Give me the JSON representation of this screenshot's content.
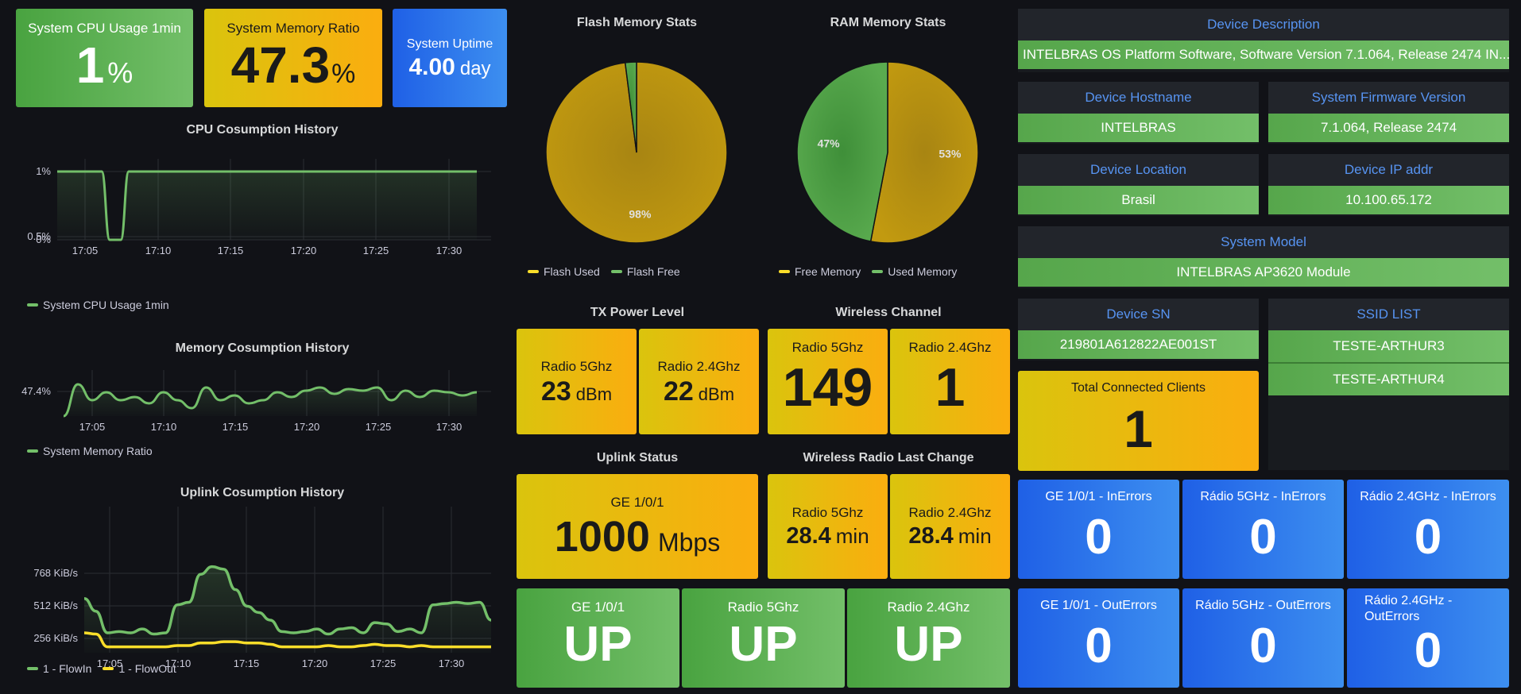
{
  "top_stats": {
    "cpu": {
      "title": "System CPU Usage 1min",
      "value": "1",
      "unit": "%"
    },
    "memory": {
      "title": "System Memory Ratio",
      "value": "47.3",
      "unit": "%"
    },
    "uptime": {
      "title": "System Uptime",
      "value": "4.00",
      "unit": "day"
    }
  },
  "cpu_history": {
    "title": "CPU Cosumption History",
    "legend": "System CPU Usage 1min",
    "y_ticks": [
      "1%",
      "0.5%",
      "0%"
    ],
    "x_ticks": [
      "17:05",
      "17:10",
      "17:15",
      "17:20",
      "17:25",
      "17:30"
    ],
    "color": "#73bf69",
    "chart_data": {
      "type": "line",
      "x": [
        "17:02",
        "17:03",
        "17:04",
        "17:05",
        "17:06",
        "17:07",
        "17:08",
        "17:10",
        "17:15",
        "17:20",
        "17:25",
        "17:30",
        "17:33"
      ],
      "series": [
        {
          "name": "System CPU Usage 1min",
          "values": [
            1,
            1,
            1,
            1,
            0,
            0,
            1,
            1,
            1,
            1,
            1,
            1,
            1
          ]
        }
      ],
      "ylim": [
        0,
        1
      ]
    }
  },
  "mem_history": {
    "title": "Memory Cosumption History",
    "legend": "System Memory Ratio",
    "y_ticks": [
      "47.4%"
    ],
    "x_ticks": [
      "17:05",
      "17:10",
      "17:15",
      "17:20",
      "17:25",
      "17:30"
    ],
    "color": "#73bf69",
    "chart_data": {
      "type": "line",
      "series": [
        {
          "name": "System Memory Ratio",
          "values": [
            47.2,
            47.4,
            47.3,
            47.35,
            47.3,
            47.32,
            47.28,
            47.35,
            47.3,
            47.25,
            47.38,
            47.3,
            47.33,
            47.28,
            47.3,
            47.35,
            47.32,
            47.36,
            47.38,
            47.34,
            47.37,
            47.36,
            47.38,
            47.3,
            47.36,
            47.32,
            47.36,
            47.35,
            47.33,
            47.35
          ]
        }
      ]
    }
  },
  "uplink_history": {
    "title": "Uplink Cosumption History",
    "y_ticks": [
      "768 KiB/s",
      "512 KiB/s",
      "256 KiB/s"
    ],
    "x_ticks": [
      "17:05",
      "17:10",
      "17:15",
      "17:20",
      "17:25",
      "17:30"
    ],
    "legend_in": "1 - FlowIn",
    "legend_out": "1 - FlowOut",
    "color_in": "#73bf69",
    "color_out": "#fade2a",
    "chart_data": {
      "type": "line",
      "series": [
        {
          "name": "1 - FlowIn",
          "values": [
            570,
            470,
            300,
            310,
            300,
            330,
            290,
            300,
            520,
            540,
            760,
            820,
            800,
            640,
            510,
            460,
            400,
            310,
            300,
            310,
            330,
            290,
            330,
            340,
            300,
            380,
            370,
            310,
            330,
            300,
            520,
            530,
            540,
            530,
            540,
            400
          ]
        },
        {
          "name": "1 - FlowOut",
          "values": [
            300,
            290,
            190,
            190,
            190,
            190,
            190,
            190,
            200,
            200,
            220,
            220,
            230,
            230,
            220,
            220,
            210,
            190,
            190,
            190,
            190,
            200,
            190,
            190,
            200,
            210,
            200,
            200,
            190,
            200,
            190,
            190,
            190,
            190,
            190,
            190
          ]
        }
      ]
    }
  },
  "flash_pie": {
    "title": "Flash Memory Stats",
    "legend": [
      "Flash Used",
      "Flash Free"
    ],
    "colors": [
      "#b88c0f",
      "#56a64b"
    ],
    "labels": [
      "98%"
    ],
    "chart_data": {
      "type": "pie",
      "categories": [
        "Flash Used",
        "Flash Free"
      ],
      "values": [
        98,
        2
      ]
    }
  },
  "ram_pie": {
    "title": "RAM Memory Stats",
    "legend": [
      "Free Memory",
      "Used Memory"
    ],
    "colors": [
      "#b88c0f",
      "#56a64b"
    ],
    "labels": [
      "53%",
      "47%"
    ],
    "chart_data": {
      "type": "pie",
      "categories": [
        "Free Memory",
        "Used Memory"
      ],
      "values": [
        53,
        47
      ]
    }
  },
  "tx_power": {
    "title": "TX Power Level",
    "r5": {
      "title": "Radio 5Ghz",
      "value": "23",
      "unit": "dBm"
    },
    "r24": {
      "title": "Radio 2.4Ghz",
      "value": "22",
      "unit": "dBm"
    }
  },
  "channel": {
    "title": "Wireless Channel",
    "r5": {
      "title": "Radio 5Ghz",
      "value": "149"
    },
    "r24": {
      "title": "Radio 2.4Ghz",
      "value": "1"
    }
  },
  "uplink_status": {
    "title": "Uplink Status",
    "port": "GE 1/0/1",
    "value": "1000",
    "unit": "Mbps"
  },
  "radio_change": {
    "title": "Wireless Radio Last Change",
    "r5": {
      "title": "Radio 5Ghz",
      "value": "28.4",
      "unit": "min"
    },
    "r24": {
      "title": "Radio 2.4Ghz",
      "value": "28.4",
      "unit": "min"
    }
  },
  "link_states": [
    {
      "title": "GE 1/0/1",
      "value": "UP"
    },
    {
      "title": "Radio 5Ghz",
      "value": "UP"
    },
    {
      "title": "Radio 2.4Ghz",
      "value": "UP"
    }
  ],
  "device": {
    "description": {
      "label": "Device Description",
      "value": "INTELBRAS OS Platform Software, Software Version 7.1.064, Release 2474 IN..."
    },
    "hostname": {
      "label": "Device Hostname",
      "value": "INTELBRAS"
    },
    "firmware": {
      "label": "System Firmware Version",
      "value": "7.1.064, Release 2474"
    },
    "location": {
      "label": "Device Location",
      "value": "Brasil"
    },
    "ip": {
      "label": "Device IP addr",
      "value": "10.100.65.172"
    },
    "model": {
      "label": "System Model",
      "value": "INTELBRAS AP3620 Module"
    },
    "sn": {
      "label": "Device SN",
      "value": "219801A612822AE001ST"
    },
    "ssid": {
      "label": "SSID LIST",
      "values": [
        "TESTE-ARTHUR3",
        "TESTE-ARTHUR4"
      ]
    }
  },
  "clients": {
    "title": "Total Connected Clients",
    "value": "1"
  },
  "errors": {
    "in": [
      {
        "title": "GE 1/0/1 - InErrors",
        "value": "0"
      },
      {
        "title": "Rádio 5GHz - InErrors",
        "value": "0"
      },
      {
        "title": "Rádio 2.4GHz - InErrors",
        "value": "0"
      }
    ],
    "out": [
      {
        "title": "GE 1/0/1 - OutErrors",
        "value": "0"
      },
      {
        "title": "Rádio 5GHz - OutErrors",
        "value": "0"
      },
      {
        "title": "Rádio 2.4GHz - OutErrors",
        "value": "0"
      }
    ]
  }
}
